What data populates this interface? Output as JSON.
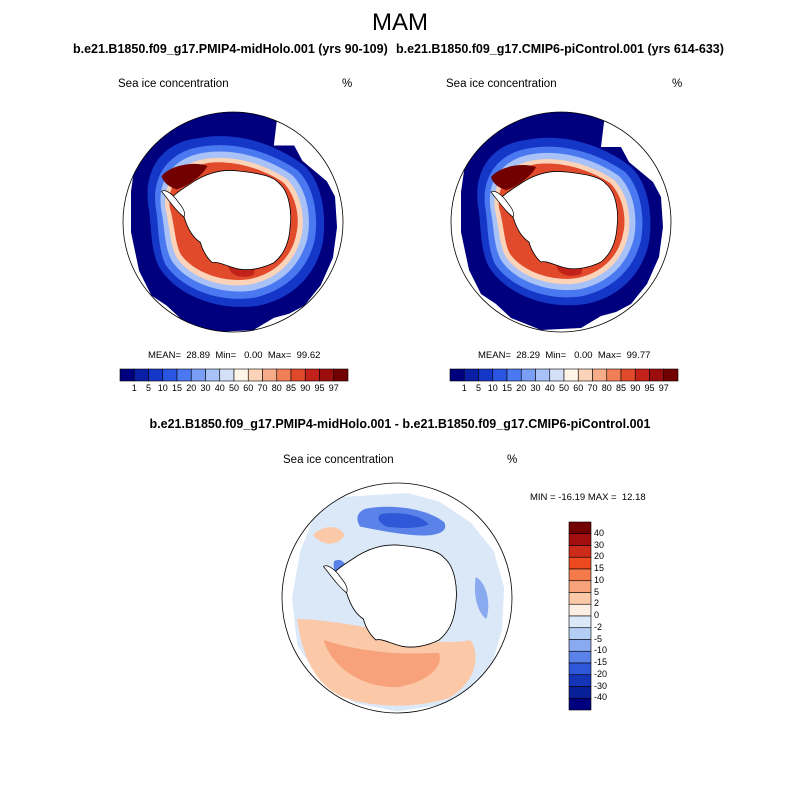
{
  "page": {
    "title": "MAM",
    "left_case_title": "b.e21.B1850.f09_g17.PMIP4-midHolo.001 (yrs 90-109)",
    "right_case_title": "b.e21.B1850.f09_g17.CMIP6-piControl.001 (yrs 614-633)",
    "diff_title": "b.e21.B1850.f09_g17.PMIP4-midHolo.001 - b.e21.B1850.f09_g17.CMIP6-piControl.001"
  },
  "panels": [
    {
      "variable_label": "Sea ice concentration",
      "units": "%",
      "stats": "MEAN=  28.89  Min=   0.00  Max=  99.62"
    },
    {
      "variable_label": "Sea ice concentration",
      "units": "%",
      "stats": "MEAN=  28.29  Min=   0.00  Max=  99.77"
    },
    {
      "variable_label": "Sea ice concentration",
      "units": "%",
      "stats": "MIN = -16.19 MAX =  12.18"
    }
  ],
  "colorbar_main": {
    "labels": [
      "1",
      "5",
      "10",
      "15",
      "20",
      "30",
      "40",
      "50",
      "60",
      "70",
      "80",
      "85",
      "90",
      "95",
      "97"
    ],
    "colors": [
      "#00007f",
      "#0a1fa6",
      "#1537c8",
      "#2a55e0",
      "#4a78f0",
      "#7a9ef5",
      "#a8c2f7",
      "#d3e0f8",
      "#fff4e8",
      "#fbd3b8",
      "#f6ac88",
      "#f07f58",
      "#e24a2c",
      "#c3221a",
      "#9c0e0e",
      "#720000"
    ]
  },
  "colorbar_diff": {
    "labels": [
      "40",
      "30",
      "20",
      "15",
      "10",
      "5",
      "2",
      "0",
      "-2",
      "-5",
      "-10",
      "-15",
      "-20",
      "-30",
      "-40"
    ],
    "colors": [
      "#720000",
      "#a30e0e",
      "#cc2a1a",
      "#ee4a22",
      "#f47a4c",
      "#f7a27a",
      "#fbc8a8",
      "#fdeee2",
      "#dbe8f8",
      "#b4cdf5",
      "#8aaaf0",
      "#5a82e8",
      "#2f58d8",
      "#1435b8",
      "#071f98",
      "#00007f"
    ]
  }
}
